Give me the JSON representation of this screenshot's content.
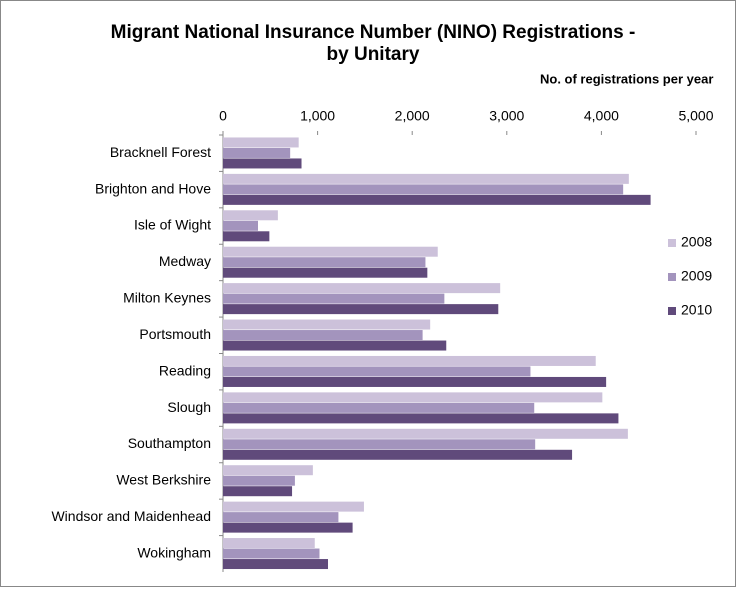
{
  "chart_data": {
    "type": "bar",
    "orientation": "horizontal",
    "title": "Migrant National Insurance Number (NINO) Registrations -",
    "subtitle": "by Unitary",
    "x_label": "No. of registrations per year",
    "categories": [
      "Bracknell Forest",
      "Brighton and Hove",
      "Isle of Wight",
      "Medway",
      "Milton Keynes",
      "Portsmouth",
      "Reading",
      "Slough",
      "Southampton",
      "West Berkshire",
      "Windsor and Maidenhead",
      "Wokingham"
    ],
    "series": [
      {
        "name": "2008",
        "color": "#ccc1da",
        "values": [
          800,
          4290,
          580,
          2270,
          2930,
          2190,
          3940,
          4010,
          4280,
          950,
          1490,
          970
        ]
      },
      {
        "name": "2009",
        "color": "#a394bd",
        "values": [
          710,
          4230,
          370,
          2140,
          2340,
          2110,
          3250,
          3290,
          3300,
          760,
          1220,
          1020
        ]
      },
      {
        "name": "2010",
        "color": "#604a7b",
        "values": [
          830,
          4520,
          490,
          2160,
          2910,
          2360,
          4050,
          4180,
          3690,
          730,
          1370,
          1110
        ]
      }
    ],
    "xlim": [
      0,
      5000
    ],
    "xticks": [
      0,
      {
        "value": 1000,
        "label": "1,000"
      },
      {
        "value": 2000,
        "label": "2,000"
      },
      {
        "value": 3000,
        "label": "3,000"
      },
      {
        "value": 4000,
        "label": "4,000"
      },
      {
        "value": 5000,
        "label": "5,000"
      }
    ],
    "grid": false,
    "legend": "right"
  }
}
